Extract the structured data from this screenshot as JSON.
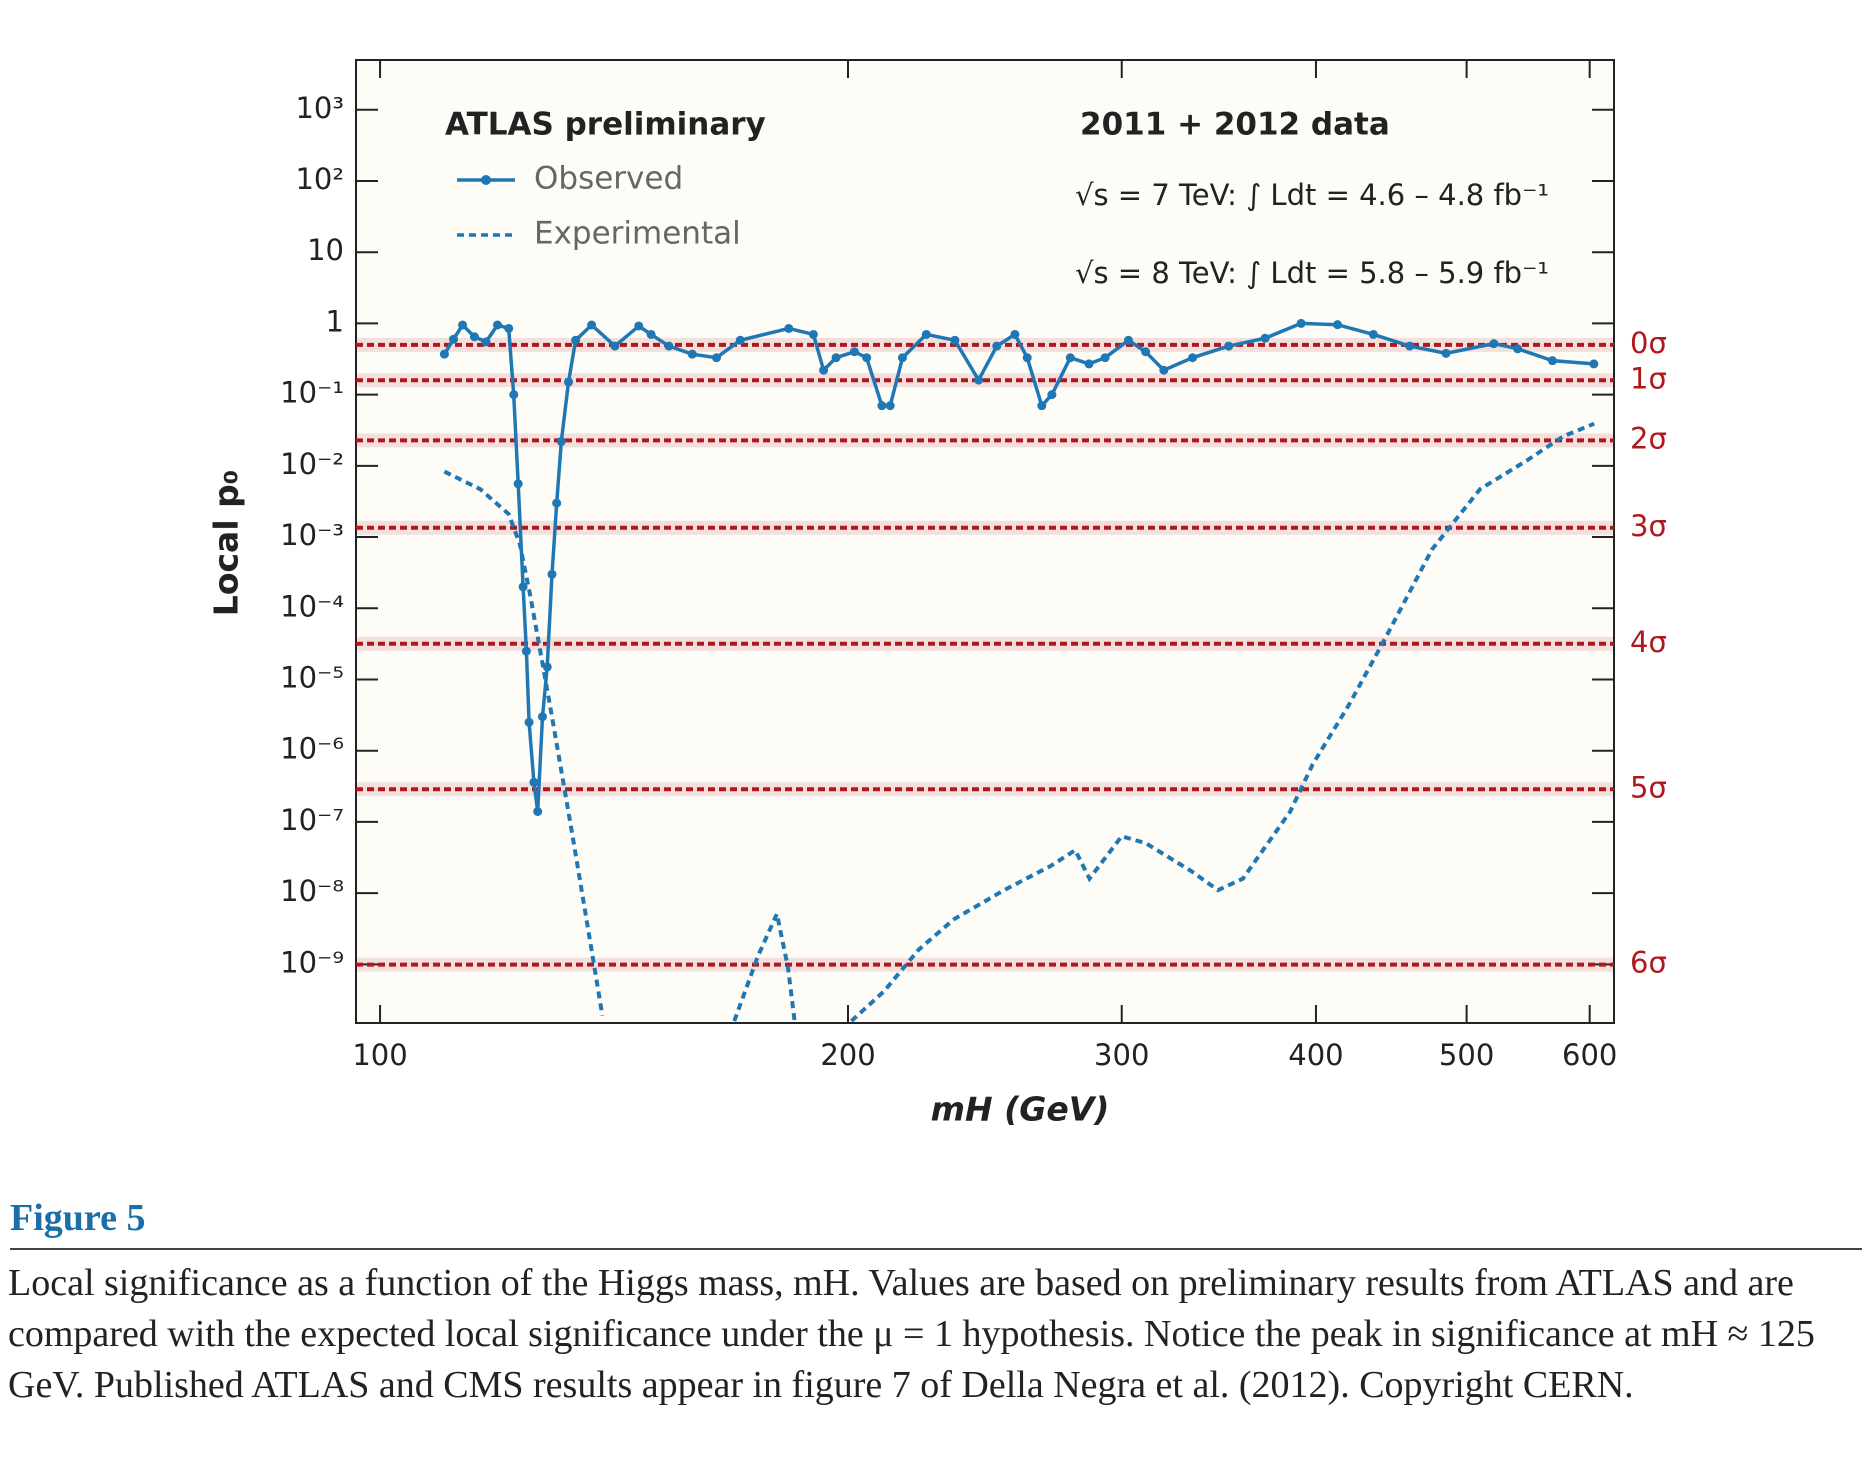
{
  "chart_data": {
    "type": "line",
    "legend_title": "ATLAS preliminary",
    "annotations": [
      "2011 + 2012 data",
      "√s = 7 TeV: ∫ Ldt = 4.6 – 4.8 fb⁻¹",
      "√s = 8 TeV: ∫ Ldt = 5.8 – 5.9 fb⁻¹"
    ],
    "x_label": "mH (GeV)",
    "y_label": "Local p₀",
    "xscale": "log",
    "yscale": "log",
    "xlim": [
      96.5,
      622
    ],
    "ylim": [
      1.5e-10,
      5000
    ],
    "xticks": [
      100,
      200,
      300,
      400,
      500,
      600
    ],
    "yticks": [
      {
        "value": 1000,
        "label": "10³"
      },
      {
        "value": 100,
        "label": "10²"
      },
      10,
      1,
      {
        "value": 0.1,
        "label": "10⁻¹"
      },
      {
        "value": 0.01,
        "label": "10⁻²"
      },
      {
        "value": 0.001,
        "label": "10⁻³"
      },
      {
        "value": 0.0001,
        "label": "10⁻⁴"
      },
      {
        "value": 1e-05,
        "label": "10⁻⁵"
      },
      {
        "value": 1e-06,
        "label": "10⁻⁶"
      },
      {
        "value": 1e-07,
        "label": "10⁻⁷"
      },
      {
        "value": 1e-08,
        "label": "10⁻⁸"
      },
      {
        "value": 1e-09,
        "label": "10⁻⁹"
      }
    ],
    "reference_lines": [
      {
        "value": 0.5,
        "label": "0σ"
      },
      {
        "value": 0.159,
        "label": "1σ"
      },
      {
        "value": 0.0228,
        "label": "2σ"
      },
      {
        "value": 0.00135,
        "label": "3σ"
      },
      {
        "value": 3.17e-05,
        "label": "4σ"
      },
      {
        "value": 2.87e-07,
        "label": "5σ"
      },
      {
        "value": 9.9e-10,
        "label": "6σ"
      }
    ],
    "reference_color": "#b0181e",
    "series": [
      {
        "name": "Observed",
        "color": "#1f78b4",
        "style": "solid",
        "markers": true,
        "x": [
          110,
          111.5,
          113,
          115,
          117,
          119,
          121,
          121.9,
          122.7,
          123.6,
          124.2,
          124.7,
          125.6,
          126.3,
          127.2,
          128.1,
          129,
          129.9,
          130.8,
          132.2,
          133.6,
          136.8,
          141.6,
          146.7,
          149.4,
          153.4,
          158.8,
          164.6,
          170.5,
          183.2,
          190,
          192.9,
          196.5,
          201.9,
          205.6,
          210.3,
          212.9,
          216.8,
          224.6,
          234.3,
          242.7,
          249.3,
          256.1,
          260.8,
          266.5,
          270.5,
          278,
          285.8,
          292.7,
          303,
          310.8,
          319.3,
          333.2,
          351.5,
          371,
          391.3,
          413,
          435.5,
          459.6,
          485,
          520.6,
          539.3,
          567.8,
          603.7
        ],
        "values": [
          0.37,
          0.6,
          0.95,
          0.65,
          0.55,
          0.95,
          0.85,
          0.1,
          0.0056,
          0.0002,
          2.5e-05,
          2.5e-06,
          3.6e-07,
          1.4e-07,
          3e-06,
          1.5e-05,
          0.0003,
          0.003,
          0.022,
          0.15,
          0.58,
          0.95,
          0.48,
          0.92,
          0.7,
          0.48,
          0.37,
          0.33,
          0.58,
          0.85,
          0.7,
          0.22,
          0.33,
          0.4,
          0.33,
          0.07,
          0.07,
          0.33,
          0.7,
          0.58,
          0.16,
          0.48,
          0.7,
          0.33,
          0.07,
          0.1,
          0.33,
          0.27,
          0.33,
          0.58,
          0.4,
          0.22,
          0.33,
          0.48,
          0.62,
          1.0,
          0.96,
          0.7,
          0.48,
          0.38,
          0.52,
          0.44,
          0.3,
          0.27
        ]
      },
      {
        "name": "Experimental",
        "color": "#1f78b4",
        "style": "dashed",
        "markers": false,
        "x": [
          110,
          116,
          121,
          123,
          125,
          129,
          133,
          137,
          139,
          null,
          169,
          175,
          180,
          183,
          185,
          null,
          201,
          211,
          222,
          234,
          252,
          270,
          280,
          286,
          300,
          311,
          333,
          346,
          359,
          385,
          398,
          420,
          443,
          475,
          510,
          547,
          577,
          604
        ],
        "values": [
          0.0083,
          0.0047,
          0.0021,
          0.0008,
          0.00014,
          3e-06,
          6.3e-08,
          1.3e-09,
          1.9e-10,
          null,
          1.6e-10,
          1.3e-09,
          5.1e-09,
          9e-10,
          1.3e-10,
          null,
          1.6e-10,
          4.2e-10,
          1.6e-09,
          4.3e-09,
          1.1e-08,
          2.4e-08,
          4e-08,
          1.6e-08,
          6.3e-08,
          5e-08,
          2e-08,
          1.1e-08,
          1.6e-08,
          1.4e-07,
          6.4e-07,
          4.4e-06,
          3.7e-05,
          0.00067,
          0.0047,
          0.012,
          0.026,
          0.039
        ]
      }
    ]
  },
  "figure": {
    "label": "Figure 5",
    "caption": "Local significance as a function of the Higgs mass, mH. Values are based on preliminary results from ATLAS and are compared with the expected local significance under the μ = 1 hypothesis. Notice the peak in significance at mH ≈ 125 GeV. Published ATLAS and CMS results appear in figure 7 of Della Negra et al. (2012). Copyright CERN."
  }
}
